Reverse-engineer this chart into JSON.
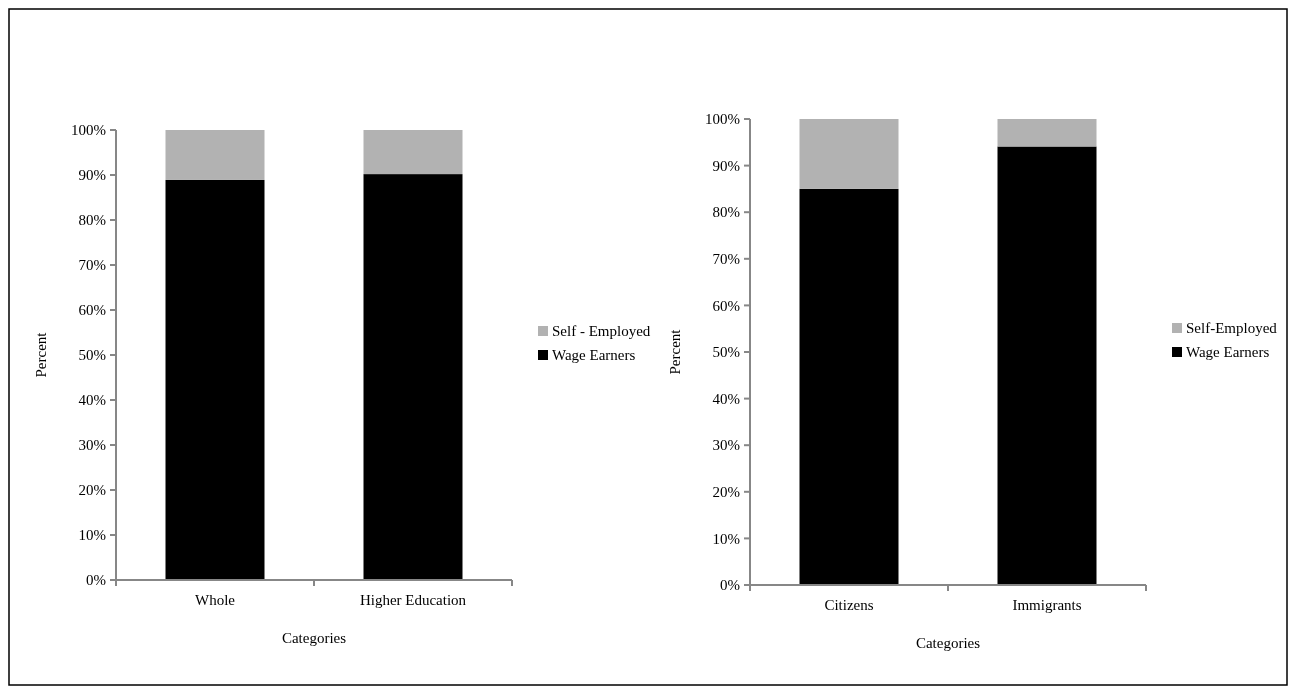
{
  "chart_data": [
    {
      "type": "bar",
      "stacked": true,
      "xlabel": "Categories",
      "ylabel": "Percent",
      "categories": [
        "Whole",
        "Higher Education"
      ],
      "ylim": [
        0,
        100
      ],
      "yticks": [
        {
          "value": 0,
          "label": "0%"
        },
        {
          "value": 10,
          "label": "10%"
        },
        {
          "value": 20,
          "label": "20%"
        },
        {
          "value": 30,
          "label": "30%"
        },
        {
          "value": 40,
          "label": "40%"
        },
        {
          "value": 50,
          "label": "50%"
        },
        {
          "value": 60,
          "label": "60%"
        },
        {
          "value": 70,
          "label": "70%"
        },
        {
          "value": 80,
          "label": "80%"
        },
        {
          "value": 90,
          "label": "90%"
        },
        {
          "value": 100,
          "label": "100%"
        }
      ],
      "legend": "right",
      "series": [
        {
          "name": "Wage Earners",
          "color": "#000000",
          "values": [
            88.9,
            90.2
          ]
        },
        {
          "name": "Self - Employed",
          "color": "#b2b2b2",
          "values": [
            11.1,
            9.8
          ]
        }
      ]
    },
    {
      "type": "bar",
      "stacked": true,
      "xlabel": "Categories",
      "ylabel": "Percent",
      "categories": [
        "Citizens",
        "Immigrants"
      ],
      "ylim": [
        0,
        100
      ],
      "yticks": [
        {
          "value": 0,
          "label": "0%"
        },
        {
          "value": 10,
          "label": "10%"
        },
        {
          "value": 20,
          "label": "20%"
        },
        {
          "value": 30,
          "label": "30%"
        },
        {
          "value": 40,
          "label": "40%"
        },
        {
          "value": 50,
          "label": "50%"
        },
        {
          "value": 60,
          "label": "60%"
        },
        {
          "value": 70,
          "label": "70%"
        },
        {
          "value": 80,
          "label": "80%"
        },
        {
          "value": 90,
          "label": "90%"
        },
        {
          "value": 100,
          "label": "100%"
        }
      ],
      "legend": "right",
      "series": [
        {
          "name": "Wage Earners",
          "color": "#000000",
          "values": [
            85,
            94.1
          ]
        },
        {
          "name": "Self-Employed",
          "color": "#b2b2b2",
          "values": [
            15,
            5.9
          ]
        }
      ]
    }
  ]
}
